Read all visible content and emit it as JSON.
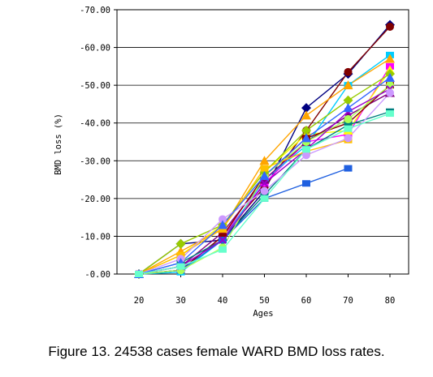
{
  "caption": "Figure 13. 24538 cases female WARD BMD loss rates.",
  "chart_data": {
    "type": "line",
    "title": "",
    "xlabel": "Ages",
    "ylabel": "BMD loss (%)",
    "categories": [
      20,
      30,
      40,
      50,
      60,
      70,
      80
    ],
    "ylim": [
      0,
      -70
    ],
    "ytick_labels": [
      "-0.00",
      "-10.00",
      "-20.00",
      "-30.00",
      "-40.00",
      "-50.00",
      "-60.00",
      "-70.00"
    ],
    "ytick_values": [
      0,
      -10,
      -20,
      -30,
      -40,
      -50,
      -60,
      -70
    ],
    "grid": "horizontal",
    "legend": "none",
    "series": [
      {
        "color": "#000080",
        "marker": "diamond",
        "values": [
          0,
          -8,
          -9,
          -22,
          -44,
          -53,
          -66
        ]
      },
      {
        "color": "#800000",
        "marker": "circle",
        "values": [
          0,
          -1,
          -10,
          -23,
          -38,
          -53.5,
          -65.5
        ]
      },
      {
        "color": "#FF00FF",
        "marker": "square",
        "values": [
          0,
          -1,
          -10,
          -24,
          -35,
          -37,
          -55
        ]
      },
      {
        "color": "#FFFF00",
        "marker": "triangle",
        "values": [
          0,
          -5,
          -13,
          -27,
          -37,
          -38,
          -54
        ]
      },
      {
        "color": "#00CCFF",
        "marker": "square",
        "values": [
          0,
          -0.5,
          -9,
          -25,
          -34,
          -50,
          -58
        ]
      },
      {
        "color": "#800080",
        "marker": "triangle",
        "values": [
          0,
          -2,
          -11,
          -25,
          -35,
          -42,
          -48
        ]
      },
      {
        "color": "#8B0000",
        "marker": "square",
        "values": [
          0,
          -1,
          -10,
          -26,
          -36,
          -40,
          -50
        ]
      },
      {
        "color": "#008080",
        "marker": "square",
        "values": [
          0,
          -3,
          -9,
          -21,
          -33,
          -39.5,
          -43
        ]
      },
      {
        "color": "#2060E0",
        "marker": "square",
        "values": [
          0,
          -1,
          -9,
          -20,
          -24,
          -28,
          null
        ]
      },
      {
        "color": "#AAFF55",
        "marker": "circle",
        "values": [
          0,
          -1,
          -7,
          -26,
          -35,
          -41,
          -50
        ]
      },
      {
        "color": "#9900CC",
        "marker": "x",
        "values": [
          0,
          -2,
          -9,
          -24,
          -33,
          -43,
          -49
        ]
      },
      {
        "color": "#FFA500",
        "marker": "triangle",
        "values": [
          0,
          -6,
          -12,
          -30,
          -42,
          -50,
          -57
        ]
      },
      {
        "color": "#99CC00",
        "marker": "diamond",
        "values": [
          0,
          -8,
          -13,
          -27,
          -38,
          -46,
          -53
        ]
      },
      {
        "color": "#FFC000",
        "marker": "square",
        "values": [
          0,
          -5,
          -12,
          -28,
          -32.5,
          -35.5,
          null
        ]
      },
      {
        "color": "#CC99FF",
        "marker": "circle",
        "values": [
          0,
          -4,
          -14.5,
          -22,
          -31.5,
          -36,
          -48
        ]
      },
      {
        "color": "#3366FF",
        "marker": "triangle",
        "values": [
          0,
          -3,
          -13,
          -26,
          -36,
          -44,
          -52
        ]
      },
      {
        "color": "#66FFCC",
        "marker": "square",
        "values": [
          0,
          -2,
          -6.5,
          -20,
          -33,
          -38.5,
          -42.5
        ]
      }
    ]
  }
}
